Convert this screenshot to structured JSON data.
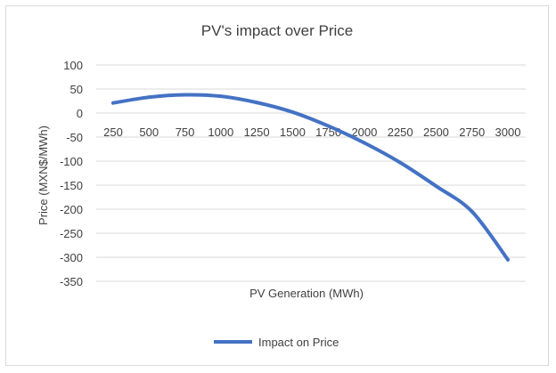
{
  "chart_data": {
    "type": "line",
    "title": "PV's impact over Price",
    "xlabel": "PV Generation (MWh)",
    "ylabel": "Price (MXN$/MWh)",
    "ylim": [
      -350,
      100
    ],
    "y_ticks": [
      100,
      50,
      0,
      -50,
      -100,
      -150,
      -200,
      -250,
      -300,
      -350
    ],
    "categories": [
      "250",
      "500",
      "750",
      "1000",
      "1250",
      "1500",
      "1750",
      "2000",
      "2250",
      "2500",
      "2750",
      "3000"
    ],
    "series": [
      {
        "name": "Impact on Price",
        "color": "#4472c4",
        "values": [
          21,
          33,
          38,
          35,
          22,
          2,
          -27,
          -62,
          -103,
          -152,
          -205,
          -305
        ]
      }
    ],
    "grid": true,
    "legend": "bottom"
  }
}
